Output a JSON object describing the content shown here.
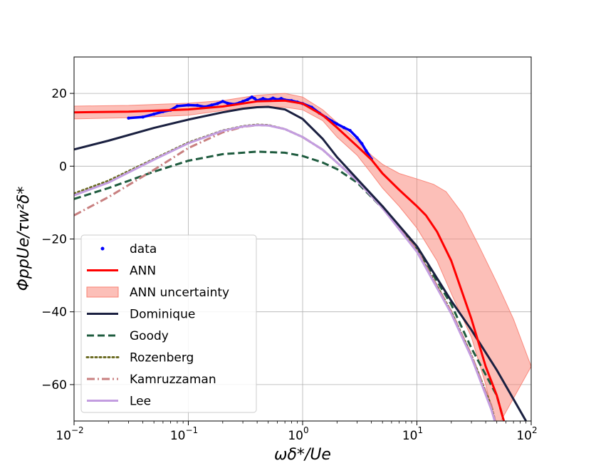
{
  "chart_data": {
    "type": "line",
    "xlabel": "ωδ*/Ue",
    "ylabel": "ΦppUe/τw²δ*",
    "xscale": "log",
    "xlim": [
      0.01,
      100
    ],
    "ylim": [
      -70,
      30
    ],
    "grid": true,
    "legend_position": "lower-left",
    "x_ticks": [
      {
        "base": "10",
        "exp": "−2"
      },
      {
        "base": "10",
        "exp": "−1"
      },
      {
        "base": "10",
        "exp": "0"
      },
      {
        "base": "10",
        "exp": "1"
      },
      {
        "base": "10",
        "exp": "2"
      }
    ],
    "y_ticks": [
      {
        "value": 20,
        "label": "20"
      },
      {
        "value": 0,
        "label": "0"
      },
      {
        "value": -20,
        "label": "−20"
      },
      {
        "value": -40,
        "label": "−40"
      },
      {
        "value": -60,
        "label": "−60"
      }
    ],
    "uncertainty": {
      "name": "ANN uncertainty",
      "color": "#fa8072",
      "upper": [
        [
          0.01,
          16.5
        ],
        [
          0.03,
          16.7
        ],
        [
          0.1,
          17.3
        ],
        [
          0.2,
          18.0
        ],
        [
          0.4,
          19.5
        ],
        [
          0.7,
          20.0
        ],
        [
          1.0,
          19.0
        ],
        [
          1.5,
          15.5
        ],
        [
          2.0,
          12.0
        ],
        [
          3.0,
          7.0
        ],
        [
          4.0,
          3.0
        ],
        [
          5.0,
          0.5
        ],
        [
          7.0,
          -2.0
        ],
        [
          10.0,
          -3.5
        ],
        [
          14.0,
          -5.0
        ],
        [
          18.0,
          -7.0
        ],
        [
          25.0,
          -13.0
        ],
        [
          35.0,
          -22.0
        ],
        [
          50.0,
          -32.0
        ],
        [
          70.0,
          -42.0
        ],
        [
          100.0,
          -55.0
        ]
      ],
      "lower": [
        [
          0.01,
          13.0
        ],
        [
          0.03,
          13.3
        ],
        [
          0.1,
          14.0
        ],
        [
          0.2,
          15.3
        ],
        [
          0.4,
          16.3
        ],
        [
          0.7,
          16.2
        ],
        [
          1.0,
          15.5
        ],
        [
          1.5,
          12.5
        ],
        [
          2.0,
          8.0
        ],
        [
          3.0,
          3.0
        ],
        [
          4.0,
          -2.0
        ],
        [
          5.0,
          -6.0
        ],
        [
          7.0,
          -11.0
        ],
        [
          10.0,
          -17.0
        ],
        [
          15.0,
          -26.0
        ],
        [
          20.0,
          -35.0
        ],
        [
          30.0,
          -47.0
        ],
        [
          40.0,
          -60.0
        ],
        [
          50.0,
          -72.0
        ]
      ]
    },
    "series": [
      {
        "name": "data",
        "color": "#0000ff",
        "style": "data",
        "points": [
          [
            0.03,
            13.2
          ],
          [
            0.04,
            13.5
          ],
          [
            0.05,
            14.3
          ],
          [
            0.06,
            15.0
          ],
          [
            0.07,
            15.4
          ],
          [
            0.08,
            16.5
          ],
          [
            0.1,
            16.8
          ],
          [
            0.12,
            16.7
          ],
          [
            0.14,
            16.3
          ],
          [
            0.16,
            16.8
          ],
          [
            0.18,
            17.2
          ],
          [
            0.2,
            17.8
          ],
          [
            0.22,
            17.3
          ],
          [
            0.25,
            17.0
          ],
          [
            0.28,
            17.4
          ],
          [
            0.3,
            17.8
          ],
          [
            0.33,
            18.3
          ],
          [
            0.36,
            19.0
          ],
          [
            0.38,
            18.6
          ],
          [
            0.4,
            18.0
          ],
          [
            0.45,
            18.6
          ],
          [
            0.5,
            18.2
          ],
          [
            0.55,
            18.7
          ],
          [
            0.6,
            18.3
          ],
          [
            0.65,
            18.6
          ],
          [
            0.7,
            18.2
          ],
          [
            0.8,
            18.0
          ],
          [
            0.9,
            17.6
          ],
          [
            1.0,
            17.2
          ],
          [
            1.2,
            16.2
          ],
          [
            1.4,
            14.6
          ],
          [
            1.6,
            13.4
          ],
          [
            1.8,
            12.4
          ],
          [
            2.0,
            11.6
          ],
          [
            2.3,
            10.6
          ],
          [
            2.6,
            9.8
          ],
          [
            3.0,
            7.8
          ],
          [
            3.3,
            6.2
          ],
          [
            3.6,
            4.2
          ],
          [
            4.0,
            2.0
          ]
        ]
      },
      {
        "name": "ANN",
        "color": "#ff0000",
        "style": "solid",
        "width": 3,
        "points": [
          [
            0.01,
            14.8
          ],
          [
            0.03,
            15.0
          ],
          [
            0.1,
            15.6
          ],
          [
            0.2,
            16.4
          ],
          [
            0.4,
            17.8
          ],
          [
            0.7,
            18.0
          ],
          [
            1.0,
            17.2
          ],
          [
            1.5,
            14.0
          ],
          [
            2.0,
            10.6
          ],
          [
            3.0,
            5.5
          ],
          [
            4.0,
            1.8
          ],
          [
            5.0,
            -2.0
          ],
          [
            7.0,
            -6.5
          ],
          [
            10.0,
            -11.0
          ],
          [
            12.0,
            -13.5
          ],
          [
            15.0,
            -18.0
          ],
          [
            20.0,
            -26.0
          ],
          [
            30.0,
            -42.0
          ],
          [
            40.0,
            -55.0
          ],
          [
            50.0,
            -63.0
          ],
          [
            60.0,
            -72.0
          ]
        ]
      },
      {
        "name": "Dominique",
        "color": "#1a2040",
        "style": "solid",
        "width": 3,
        "points": [
          [
            0.01,
            4.6
          ],
          [
            0.02,
            7.0
          ],
          [
            0.05,
            10.5
          ],
          [
            0.1,
            12.8
          ],
          [
            0.2,
            14.8
          ],
          [
            0.3,
            15.8
          ],
          [
            0.4,
            16.2
          ],
          [
            0.5,
            16.3
          ],
          [
            0.7,
            15.6
          ],
          [
            1.0,
            13.0
          ],
          [
            1.5,
            7.5
          ],
          [
            2.0,
            2.5
          ],
          [
            3.0,
            -3.5
          ],
          [
            5.0,
            -11.0
          ],
          [
            10.0,
            -22.0
          ],
          [
            20.0,
            -37.0
          ],
          [
            30.0,
            -45.0
          ],
          [
            50.0,
            -56.0
          ],
          [
            70.0,
            -64.0
          ],
          [
            90.0,
            -70.0
          ]
        ]
      },
      {
        "name": "Goody",
        "color": "#1f5c3f",
        "style": "dashed",
        "width": 3,
        "points": [
          [
            0.01,
            -9.0
          ],
          [
            0.02,
            -6.0
          ],
          [
            0.05,
            -1.5
          ],
          [
            0.1,
            1.5
          ],
          [
            0.2,
            3.3
          ],
          [
            0.4,
            4.0
          ],
          [
            0.7,
            3.7
          ],
          [
            1.0,
            2.8
          ],
          [
            1.5,
            1.0
          ],
          [
            2.0,
            -0.8
          ],
          [
            3.0,
            -4.5
          ],
          [
            5.0,
            -11.5
          ],
          [
            10.0,
            -22.5
          ],
          [
            20.0,
            -38.0
          ],
          [
            30.0,
            -50.0
          ],
          [
            50.0,
            -63.0
          ],
          [
            60.0,
            -72.0
          ]
        ]
      },
      {
        "name": "Rozenberg",
        "color": "#6b6b22",
        "style": "dotted",
        "width": 3,
        "points": [
          [
            0.01,
            -7.5
          ],
          [
            0.02,
            -4.0
          ],
          [
            0.05,
            2.0
          ],
          [
            0.1,
            6.5
          ],
          [
            0.2,
            9.8
          ],
          [
            0.3,
            11.0
          ],
          [
            0.4,
            11.4
          ],
          [
            0.5,
            11.3
          ],
          [
            0.7,
            10.2
          ],
          [
            1.0,
            8.0
          ],
          [
            1.5,
            4.5
          ],
          [
            2.0,
            1.0
          ],
          [
            3.0,
            -4.0
          ],
          [
            5.0,
            -11.0
          ],
          [
            10.0,
            -23.0
          ],
          [
            20.0,
            -40.0
          ],
          [
            30.0,
            -52.0
          ],
          [
            45.0,
            -66.0
          ],
          [
            50.0,
            -72.0
          ]
        ]
      },
      {
        "name": "Kamruzzaman",
        "color": "#c87f7f",
        "style": "dashdot",
        "width": 3,
        "points": [
          [
            0.01,
            -13.5
          ],
          [
            0.02,
            -8.5
          ],
          [
            0.05,
            -1.0
          ],
          [
            0.1,
            5.0
          ],
          [
            0.2,
            9.3
          ],
          [
            0.3,
            10.8
          ],
          [
            0.4,
            11.3
          ],
          [
            0.5,
            11.2
          ],
          [
            0.7,
            10.2
          ],
          [
            1.0,
            8.0
          ],
          [
            1.5,
            4.5
          ],
          [
            2.0,
            1.0
          ],
          [
            3.0,
            -4.0
          ],
          [
            5.0,
            -11.5
          ],
          [
            10.0,
            -23.0
          ],
          [
            20.0,
            -40.0
          ],
          [
            30.0,
            -52.0
          ],
          [
            45.0,
            -66.0
          ],
          [
            50.0,
            -72.0
          ]
        ]
      },
      {
        "name": "Lee",
        "color": "#c39de0",
        "style": "solid",
        "width": 3,
        "points": [
          [
            0.01,
            -8.0
          ],
          [
            0.02,
            -4.5
          ],
          [
            0.05,
            1.8
          ],
          [
            0.1,
            6.3
          ],
          [
            0.2,
            9.7
          ],
          [
            0.3,
            10.9
          ],
          [
            0.4,
            11.3
          ],
          [
            0.5,
            11.2
          ],
          [
            0.7,
            10.2
          ],
          [
            1.0,
            8.0
          ],
          [
            1.5,
            4.5
          ],
          [
            2.0,
            1.0
          ],
          [
            3.0,
            -4.0
          ],
          [
            5.0,
            -11.5
          ],
          [
            10.0,
            -23.5
          ],
          [
            20.0,
            -40.5
          ],
          [
            30.0,
            -52.5
          ],
          [
            45.0,
            -67.0
          ],
          [
            50.0,
            -72.0
          ]
        ]
      }
    ],
    "legend": [
      {
        "label": "data",
        "kind": "dot",
        "color": "#0000ff"
      },
      {
        "label": "ANN",
        "kind": "solid",
        "color": "#ff0000"
      },
      {
        "label": "ANN uncertainty",
        "kind": "patch",
        "color": "#fa8072"
      },
      {
        "label": "Dominique",
        "kind": "solid",
        "color": "#1a2040"
      },
      {
        "label": "Goody",
        "kind": "dashed",
        "color": "#1f5c3f"
      },
      {
        "label": "Rozenberg",
        "kind": "dotted",
        "color": "#6b6b22"
      },
      {
        "label": "Kamruzzaman",
        "kind": "dashdot",
        "color": "#c87f7f"
      },
      {
        "label": "Lee",
        "kind": "solid",
        "color": "#c39de0"
      }
    ]
  }
}
